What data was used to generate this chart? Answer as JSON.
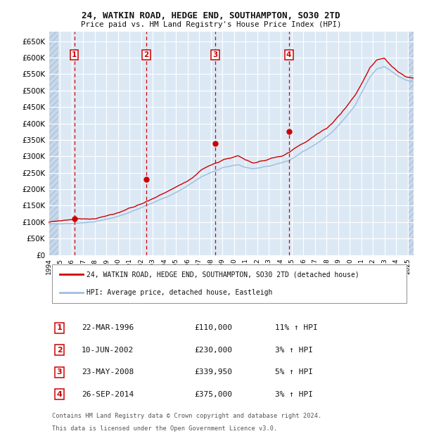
{
  "title1": "24, WATKIN ROAD, HEDGE END, SOUTHAMPTON, SO30 2TD",
  "title2": "Price paid vs. HM Land Registry's House Price Index (HPI)",
  "background_color": "#ffffff",
  "plot_bg_color": "#dce9f5",
  "grid_color": "#ffffff",
  "hpi_color": "#a0c0e0",
  "price_color": "#cc0000",
  "sale_marker_color": "#cc0000",
  "vline_color": "#cc0000",
  "ylim": [
    0,
    680000
  ],
  "yticks": [
    0,
    50000,
    100000,
    150000,
    200000,
    250000,
    300000,
    350000,
    400000,
    450000,
    500000,
    550000,
    600000,
    650000
  ],
  "ytick_labels": [
    "£0",
    "£50K",
    "£100K",
    "£150K",
    "£200K",
    "£250K",
    "£300K",
    "£350K",
    "£400K",
    "£450K",
    "£500K",
    "£550K",
    "£600K",
    "£650K"
  ],
  "xmin": 1994.0,
  "xmax": 2025.5,
  "hpi_keypoints_t": [
    0.0,
    0.065,
    0.13,
    0.2,
    0.26,
    0.32,
    0.38,
    0.42,
    0.45,
    0.48,
    0.52,
    0.54,
    0.56,
    0.58,
    0.61,
    0.64,
    0.66,
    0.68,
    0.7,
    0.72,
    0.74,
    0.76,
    0.78,
    0.8,
    0.82,
    0.84,
    0.86,
    0.88,
    0.9,
    0.92,
    0.94,
    0.96,
    0.98,
    1.0
  ],
  "hpi_keypoints_v": [
    95000,
    98000,
    102000,
    120000,
    145000,
    175000,
    210000,
    240000,
    255000,
    268000,
    275000,
    265000,
    258000,
    262000,
    268000,
    275000,
    282000,
    295000,
    308000,
    320000,
    335000,
    350000,
    368000,
    392000,
    418000,
    448000,
    490000,
    530000,
    555000,
    560000,
    545000,
    530000,
    520000,
    515000
  ],
  "price_keypoints_t": [
    0.0,
    0.065,
    0.13,
    0.2,
    0.26,
    0.32,
    0.38,
    0.42,
    0.45,
    0.48,
    0.52,
    0.54,
    0.56,
    0.58,
    0.61,
    0.64,
    0.66,
    0.68,
    0.7,
    0.72,
    0.74,
    0.76,
    0.78,
    0.8,
    0.82,
    0.84,
    0.86,
    0.88,
    0.9,
    0.92,
    0.94,
    0.96,
    0.98,
    1.0
  ],
  "price_keypoints_v": [
    100000,
    103000,
    108000,
    128000,
    155000,
    188000,
    222000,
    255000,
    272000,
    288000,
    298000,
    285000,
    275000,
    280000,
    288000,
    296000,
    305000,
    318000,
    332000,
    348000,
    362000,
    378000,
    398000,
    422000,
    450000,
    480000,
    522000,
    565000,
    590000,
    595000,
    575000,
    555000,
    540000,
    535000
  ],
  "sales": [
    {
      "num": 1,
      "date_str": "22-MAR-1996",
      "year": 1996.22,
      "price": 110000,
      "hpi_pct": "11%",
      "label": "22-MAR-1996",
      "amount": "£110,000"
    },
    {
      "num": 2,
      "date_str": "10-JUN-2002",
      "year": 2002.44,
      "price": 230000,
      "hpi_pct": "3%",
      "label": "10-JUN-2002",
      "amount": "£230,000"
    },
    {
      "num": 3,
      "date_str": "23-MAY-2008",
      "year": 2008.39,
      "price": 339950,
      "hpi_pct": "5%",
      "label": "23-MAY-2008",
      "amount": "£339,950"
    },
    {
      "num": 4,
      "date_str": "26-SEP-2014",
      "year": 2014.73,
      "price": 375000,
      "hpi_pct": "3%",
      "label": "26-SEP-2014",
      "amount": "£375,000"
    }
  ],
  "legend_line1": "24, WATKIN ROAD, HEDGE END, SOUTHAMPTON, SO30 2TD (detached house)",
  "legend_line2": "HPI: Average price, detached house, Eastleigh",
  "footer1": "Contains HM Land Registry data © Crown copyright and database right 2024.",
  "footer2": "This data is licensed under the Open Government Licence v3.0."
}
